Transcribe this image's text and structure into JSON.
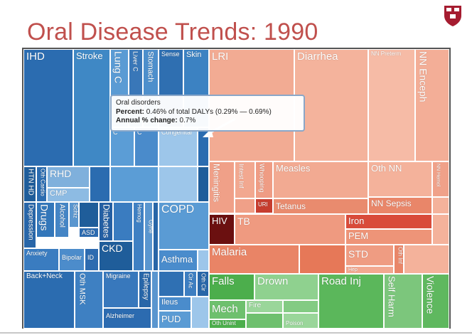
{
  "slide": {
    "title": "Oral Disease Trends: 1990"
  },
  "colors": {
    "blue_dark": "#1f5d9a",
    "blue_mid": "#3f85c4",
    "blue_light": "#9cc3e6",
    "salmon": "#f2a78f",
    "red": "#d94b3a",
    "green": "#5cb85c"
  },
  "labels": {
    "ihd": "IHD",
    "stroke": "Stroke",
    "lung": "Lung C",
    "stomach": "Stomach",
    "sense": "Sense",
    "skin": "Skin",
    "lri": "LRI",
    "diarrhea": "Diarrhea",
    "nn_preterm": "NN Preterm",
    "nn_enceph": "NN Enceph",
    "htn_hd": "HTN HD",
    "oth_cardio": "Oth Cardio",
    "rhd": "RHD",
    "cmp": "CMP",
    "meningitis": "Meningitis",
    "intest_inf": "Intest Inf",
    "whooping": "Whooping",
    "measles": "Measles",
    "oth_nn": "Oth NN",
    "nn_hemol": "NN Hemol",
    "nn_sepsis": "NN Sepsis",
    "uri": "URI",
    "tetanus": "Tetanus",
    "depression": "Depression",
    "drugs": "Drugs",
    "alcohol": "Alcohol",
    "schiz": "Schiz",
    "asd": "ASD",
    "anxiety": "Anxiety",
    "bipolar": "Bipolar",
    "id": "ID",
    "diabetes": "Diabetes",
    "hemog": "Hemog",
    "gyne": "Gyne",
    "urinary": "Urinary",
    "ckd": "CKD",
    "copd": "COPD",
    "asthma": "Asthma",
    "hiv": "HIV",
    "tb": "TB",
    "iron": "Iron",
    "pem": "PEM",
    "malaria": "Malaria",
    "std": "STD",
    "oth_inf": "Oth Inf",
    "hep": "Hep",
    "back_neck": "Back+Neck",
    "oth_msk": "Oth MSK",
    "migraine": "Migraine",
    "epilepsy": "Epilepsy",
    "alzheimer": "Alzheimer",
    "oth_cir": "Oth Cir",
    "cir_ac": "Cir Ac",
    "ileus": "Ileus",
    "pud": "PUD",
    "falls": "Falls",
    "drown": "Drown",
    "road_inj": "Road Inj",
    "self_harm": "Self Harm",
    "violence": "Violence",
    "mech": "Mech",
    "fire": "Fire",
    "oth_unint": "Oth Unint",
    "poison": "Poison",
    "congenital": "Congenital",
    "liver_c": "Liver C",
    "c1": "C",
    "c2": "C",
    "c3": "C",
    "c4": "C"
  },
  "tooltip": {
    "name": "Oral disorders",
    "percent_label": "Percent:",
    "percent_value": "0.46% of total DALYs (0.29% — 0.69%)",
    "change_label": "Annual % change:",
    "change_value": "0.7%"
  }
}
